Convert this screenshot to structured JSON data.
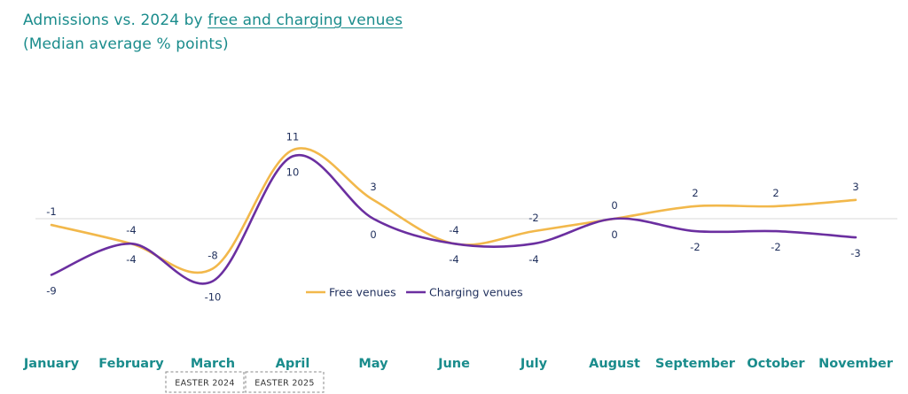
{
  "title": {
    "prefix": "Admissions vs. 2024 by ",
    "link": "free and charging venues",
    "subtitle": "(Median average % points)"
  },
  "chart_data": {
    "type": "line",
    "categories": [
      "January",
      "February",
      "March",
      "April",
      "May",
      "June",
      "July",
      "August",
      "September",
      "October",
      "November"
    ],
    "series": [
      {
        "name": "Free venues",
        "color": "#f2b84b",
        "values": [
          -1,
          -4,
          -8,
          11,
          3,
          -4,
          -2,
          0,
          2,
          2,
          3
        ]
      },
      {
        "name": "Charging venues",
        "color": "#6b2fa0",
        "values": [
          -9,
          -4,
          -10,
          10,
          0,
          -4,
          -4,
          0,
          -2,
          -2,
          -3
        ]
      }
    ],
    "legend_position": "bottom-center",
    "zero_line": true,
    "annotations": [
      {
        "text": "EASTER 2024",
        "category": "March"
      },
      {
        "text": "EASTER 2025",
        "category": "April"
      }
    ]
  }
}
